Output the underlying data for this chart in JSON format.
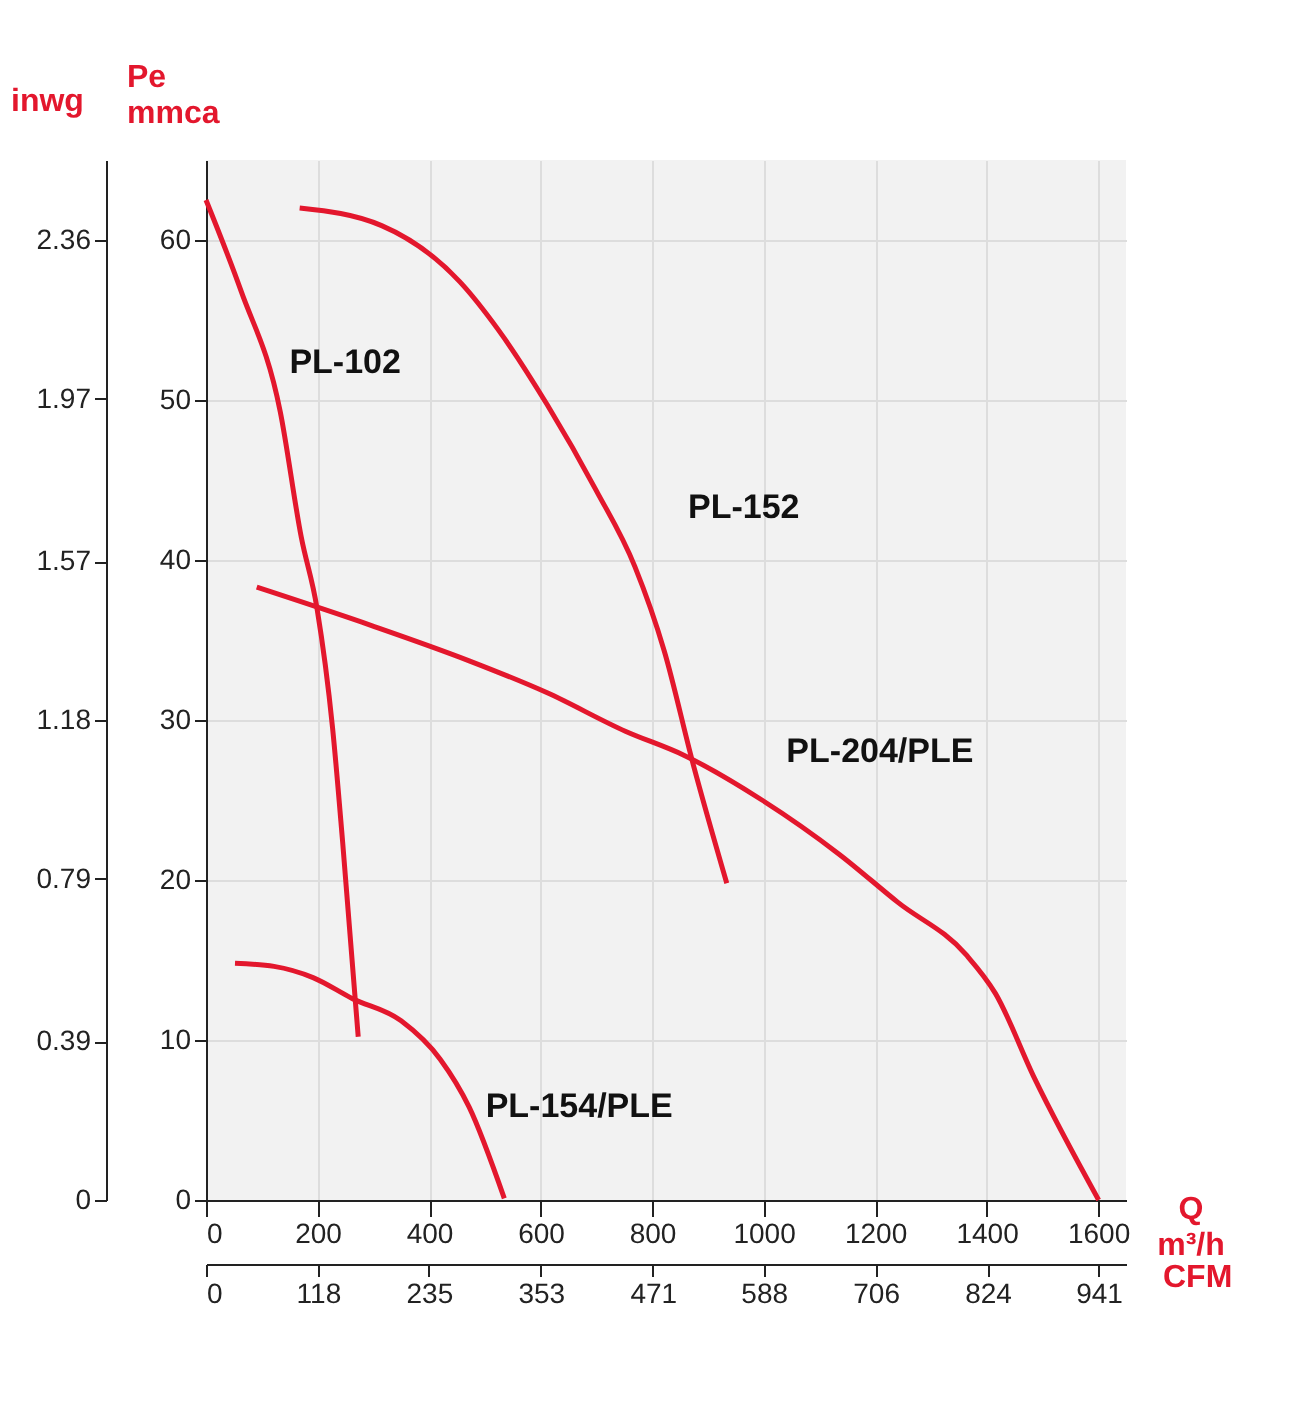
{
  "chart_data": {
    "type": "line",
    "xlabel": "Q\nm³/h",
    "ylabel": "Pe\nmmca",
    "y2label": "inwg",
    "x2label": "CFM",
    "xlim": [
      0,
      1650
    ],
    "xticks": [
      0,
      200,
      400,
      600,
      800,
      1000,
      1200,
      1400,
      1600
    ],
    "ylim": [
      0,
      65
    ],
    "yticks": [
      0,
      10,
      20,
      30,
      40,
      50,
      60
    ],
    "y2lim": [
      0,
      2.557
    ],
    "y2ticks": [
      0,
      0.39,
      0.79,
      1.18,
      1.57,
      1.97,
      2.36
    ],
    "x2lim": [
      0,
      970
    ],
    "x2ticks": [
      0,
      118,
      235,
      353,
      471,
      588,
      706,
      824,
      941
    ],
    "grid": true,
    "marker": "none",
    "line_style": "solid",
    "series": [
      {
        "name": "PL-102",
        "color": "#e3172d",
        "x": [
          0,
          63,
          133,
          171,
          199,
          227,
          245,
          273
        ],
        "values": [
          62.5,
          56.8,
          49.3,
          41.4,
          37,
          29.5,
          22.4,
          10.2
        ]
      },
      {
        "name": "PL-152",
        "color": "#e3172d",
        "x": [
          168,
          315,
          455,
          524,
          612,
          699,
          769,
          822,
          874,
          934
        ],
        "values": [
          62,
          60.9,
          57.4,
          54.4,
          49.7,
          44.4,
          39.6,
          34.3,
          27.2,
          19.8
        ]
      },
      {
        "name": "PL-204/PLE",
        "color": "#e3172d",
        "x": [
          91,
          297,
          472,
          612,
          752,
          857,
          997,
          1136,
          1241,
          1364,
          1416,
          1486,
          1601
        ],
        "values": [
          38.3,
          35.9,
          33.7,
          31.7,
          29.3,
          27.8,
          25,
          21.6,
          18.6,
          15.3,
          12.9,
          7.6,
          0
        ]
      },
      {
        "name": "PL-154/PLE",
        "color": "#e3172d",
        "x": [
          52,
          122,
          192,
          262,
          350,
          420,
          472,
          535
        ],
        "values": [
          14.8,
          14.6,
          13.9,
          12.6,
          11.2,
          8.8,
          5.8,
          0.1
        ]
      }
    ]
  }
}
